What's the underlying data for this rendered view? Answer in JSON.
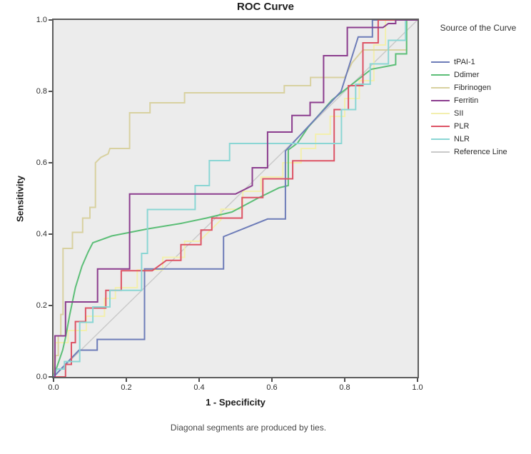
{
  "chart_data": {
    "type": "line",
    "subtype": "roc-step-curves",
    "title": "ROC Curve",
    "xlabel": "1 - Specificity",
    "ylabel": "Sensitivity",
    "xlim": [
      0,
      1
    ],
    "ylim": [
      0,
      1
    ],
    "x_ticks": [
      "0.0",
      "0.2",
      "0.4",
      "0.6",
      "0.8",
      "1.0"
    ],
    "y_ticks": [
      "0.0",
      "0.2",
      "0.4",
      "0.6",
      "0.8",
      "1.0"
    ],
    "grid": "off",
    "plot_bg": "#ececec",
    "frame_color": "#5c5c5c",
    "footnote": "Diagonal segments are produced by ties.",
    "legend_title": "Source of the Curve",
    "legend_position": "right",
    "series": [
      {
        "name": "tPAI-1",
        "color": "#6d7cb8",
        "width": 2,
        "z": 4,
        "points": [
          [
            0,
            0
          ],
          [
            0.07,
            0.075
          ],
          [
            0.12,
            0.075
          ],
          [
            0.12,
            0.105
          ],
          [
            0.25,
            0.105
          ],
          [
            0.25,
            0.3025
          ],
          [
            0.467,
            0.3025
          ],
          [
            0.467,
            0.393
          ],
          [
            0.588,
            0.4425
          ],
          [
            0.637,
            0.4425
          ],
          [
            0.637,
            0.633
          ],
          [
            0.79,
            0.8
          ],
          [
            0.837,
            0.9525
          ],
          [
            0.876,
            0.9525
          ],
          [
            0.876,
            1
          ],
          [
            1,
            1
          ]
        ]
      },
      {
        "name": "Ddimer",
        "color": "#5cbe77",
        "width": 2,
        "z": 3,
        "points": [
          [
            0,
            0
          ],
          [
            0.01,
            0.03
          ],
          [
            0.025,
            0.075
          ],
          [
            0.033,
            0.11
          ],
          [
            0.045,
            0.176
          ],
          [
            0.06,
            0.25
          ],
          [
            0.078,
            0.31
          ],
          [
            0.095,
            0.35
          ],
          [
            0.108,
            0.376
          ],
          [
            0.16,
            0.395
          ],
          [
            0.26,
            0.415
          ],
          [
            0.35,
            0.43
          ],
          [
            0.42,
            0.445
          ],
          [
            0.49,
            0.462
          ],
          [
            0.56,
            0.5
          ],
          [
            0.62,
            0.53
          ],
          [
            0.645,
            0.536
          ],
          [
            0.645,
            0.636
          ],
          [
            0.67,
            0.655
          ],
          [
            0.7,
            0.7
          ],
          [
            0.765,
            0.776
          ],
          [
            0.873,
            0.862
          ],
          [
            0.94,
            0.875
          ],
          [
            0.94,
            0.905
          ],
          [
            0.97,
            0.905
          ],
          [
            0.97,
            1
          ],
          [
            1,
            1
          ]
        ]
      },
      {
        "name": "Fibrinogen",
        "color": "#d8d1a0",
        "width": 2,
        "z": 2,
        "points": [
          [
            0,
            0
          ],
          [
            0.006,
            0.06
          ],
          [
            0.013,
            0.06
          ],
          [
            0.013,
            0.115
          ],
          [
            0.02,
            0.115
          ],
          [
            0.02,
            0.175
          ],
          [
            0.026,
            0.175
          ],
          [
            0.026,
            0.36
          ],
          [
            0.052,
            0.36
          ],
          [
            0.052,
            0.405
          ],
          [
            0.08,
            0.405
          ],
          [
            0.08,
            0.445
          ],
          [
            0.1,
            0.445
          ],
          [
            0.1,
            0.475
          ],
          [
            0.115,
            0.475
          ],
          [
            0.115,
            0.6
          ],
          [
            0.13,
            0.615
          ],
          [
            0.15,
            0.625
          ],
          [
            0.155,
            0.64
          ],
          [
            0.209,
            0.64
          ],
          [
            0.209,
            0.74
          ],
          [
            0.265,
            0.74
          ],
          [
            0.265,
            0.768
          ],
          [
            0.36,
            0.768
          ],
          [
            0.36,
            0.796
          ],
          [
            0.634,
            0.796
          ],
          [
            0.634,
            0.816
          ],
          [
            0.706,
            0.816
          ],
          [
            0.706,
            0.839
          ],
          [
            0.8,
            0.839
          ],
          [
            0.82,
            0.88
          ],
          [
            0.85,
            0.916
          ],
          [
            0.97,
            0.916
          ],
          [
            0.97,
            1
          ],
          [
            1,
            1
          ]
        ]
      },
      {
        "name": "Ferritin",
        "color": "#8b3d8e",
        "width": 2,
        "z": 7,
        "points": [
          [
            0,
            0
          ],
          [
            0.004,
            0
          ],
          [
            0.004,
            0.115
          ],
          [
            0.033,
            0.115
          ],
          [
            0.033,
            0.21
          ],
          [
            0.121,
            0.21
          ],
          [
            0.121,
            0.3025
          ],
          [
            0.209,
            0.3025
          ],
          [
            0.209,
            0.5125
          ],
          [
            0.5,
            0.5125
          ],
          [
            0.546,
            0.536
          ],
          [
            0.546,
            0.586
          ],
          [
            0.588,
            0.586
          ],
          [
            0.588,
            0.686
          ],
          [
            0.655,
            0.686
          ],
          [
            0.655,
            0.7325
          ],
          [
            0.705,
            0.7325
          ],
          [
            0.705,
            0.769
          ],
          [
            0.742,
            0.769
          ],
          [
            0.742,
            0.9
          ],
          [
            0.807,
            0.9
          ],
          [
            0.807,
            0.979
          ],
          [
            0.905,
            0.979
          ],
          [
            0.92,
            0.99
          ],
          [
            0.94,
            0.99
          ],
          [
            0.94,
            1
          ],
          [
            1,
            1
          ]
        ]
      },
      {
        "name": "SII",
        "color": "#f3efae",
        "width": 2,
        "z": 1,
        "points": [
          [
            0,
            0
          ],
          [
            0.005,
            0.096
          ],
          [
            0.04,
            0.096
          ],
          [
            0.04,
            0.13
          ],
          [
            0.09,
            0.13
          ],
          [
            0.09,
            0.17
          ],
          [
            0.14,
            0.17
          ],
          [
            0.14,
            0.22
          ],
          [
            0.17,
            0.22
          ],
          [
            0.17,
            0.25
          ],
          [
            0.23,
            0.25
          ],
          [
            0.23,
            0.3
          ],
          [
            0.3,
            0.3
          ],
          [
            0.3,
            0.335
          ],
          [
            0.36,
            0.335
          ],
          [
            0.36,
            0.38
          ],
          [
            0.4,
            0.38
          ],
          [
            0.46,
            0.44
          ],
          [
            0.46,
            0.47
          ],
          [
            0.52,
            0.47
          ],
          [
            0.52,
            0.52
          ],
          [
            0.57,
            0.52
          ],
          [
            0.57,
            0.56
          ],
          [
            0.63,
            0.56
          ],
          [
            0.63,
            0.6
          ],
          [
            0.68,
            0.6
          ],
          [
            0.68,
            0.64
          ],
          [
            0.72,
            0.64
          ],
          [
            0.72,
            0.68
          ],
          [
            0.76,
            0.68
          ],
          [
            0.76,
            0.73
          ],
          [
            0.8,
            0.73
          ],
          [
            0.8,
            0.78
          ],
          [
            0.84,
            0.78
          ],
          [
            0.84,
            0.83
          ],
          [
            0.88,
            0.83
          ],
          [
            0.88,
            0.93
          ],
          [
            0.912,
            0.93
          ],
          [
            0.912,
            1
          ],
          [
            1,
            1
          ]
        ]
      },
      {
        "name": "PLR",
        "color": "#dd5365",
        "width": 2,
        "z": 5,
        "points": [
          [
            0,
            0
          ],
          [
            0.033,
            0
          ],
          [
            0.033,
            0.035
          ],
          [
            0.049,
            0.035
          ],
          [
            0.049,
            0.096
          ],
          [
            0.06,
            0.096
          ],
          [
            0.06,
            0.155
          ],
          [
            0.088,
            0.155
          ],
          [
            0.088,
            0.193
          ],
          [
            0.1437,
            0.193
          ],
          [
            0.1437,
            0.2425
          ],
          [
            0.186,
            0.2425
          ],
          [
            0.186,
            0.2975
          ],
          [
            0.271,
            0.2975
          ],
          [
            0.31,
            0.3265
          ],
          [
            0.35,
            0.3265
          ],
          [
            0.35,
            0.3705
          ],
          [
            0.405,
            0.3705
          ],
          [
            0.405,
            0.4115
          ],
          [
            0.435,
            0.4115
          ],
          [
            0.435,
            0.445
          ],
          [
            0.518,
            0.445
          ],
          [
            0.518,
            0.5025
          ],
          [
            0.575,
            0.5025
          ],
          [
            0.575,
            0.555
          ],
          [
            0.657,
            0.555
          ],
          [
            0.657,
            0.6055
          ],
          [
            0.771,
            0.6055
          ],
          [
            0.771,
            0.749
          ],
          [
            0.81,
            0.749
          ],
          [
            0.81,
            0.816
          ],
          [
            0.85,
            0.816
          ],
          [
            0.85,
            0.936
          ],
          [
            0.892,
            0.936
          ],
          [
            0.892,
            1
          ],
          [
            1,
            1
          ]
        ]
      },
      {
        "name": "NLR",
        "color": "#8ad6d4",
        "width": 2,
        "z": 6,
        "points": [
          [
            0,
            0
          ],
          [
            0.01,
            0.022
          ],
          [
            0.03,
            0.022
          ],
          [
            0.03,
            0.043
          ],
          [
            0.072,
            0.043
          ],
          [
            0.072,
            0.153
          ],
          [
            0.108,
            0.153
          ],
          [
            0.108,
            0.196
          ],
          [
            0.155,
            0.196
          ],
          [
            0.155,
            0.2425
          ],
          [
            0.242,
            0.2425
          ],
          [
            0.242,
            0.346
          ],
          [
            0.258,
            0.346
          ],
          [
            0.258,
            0.469
          ],
          [
            0.389,
            0.469
          ],
          [
            0.389,
            0.536
          ],
          [
            0.428,
            0.536
          ],
          [
            0.428,
            0.606
          ],
          [
            0.4837,
            0.606
          ],
          [
            0.4837,
            0.654
          ],
          [
            0.791,
            0.654
          ],
          [
            0.791,
            0.749
          ],
          [
            0.83,
            0.749
          ],
          [
            0.83,
            0.82
          ],
          [
            0.87,
            0.82
          ],
          [
            0.87,
            0.877
          ],
          [
            0.92,
            0.877
          ],
          [
            0.92,
            0.943
          ],
          [
            0.967,
            0.943
          ],
          [
            0.967,
            1
          ],
          [
            1,
            1
          ]
        ]
      },
      {
        "name": "Reference Line",
        "color": "#c9c9c9",
        "width": 1.4,
        "z": 0,
        "points": [
          [
            0,
            0
          ],
          [
            1,
            1
          ]
        ]
      }
    ]
  }
}
